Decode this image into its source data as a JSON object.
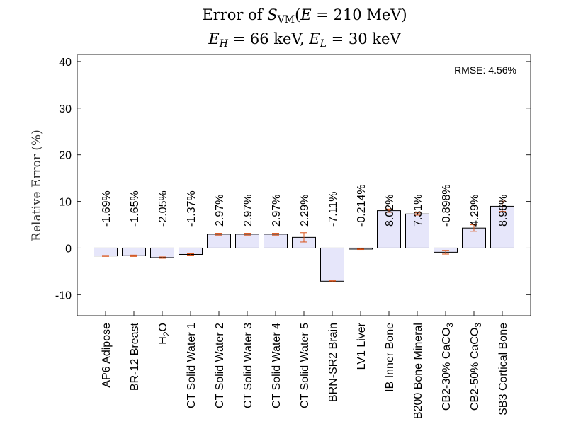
{
  "chart_data": {
    "type": "bar",
    "title_line1": "Error of S_VM(E = 210 MeV)",
    "title_line2": "E_H = 66 keV,  E_L = 30 keV",
    "ylabel": "Relative Error (%)",
    "xlabel": "",
    "ylim": [
      -14.5,
      41.5
    ],
    "yticks": [
      -10,
      0,
      10,
      20,
      30,
      40
    ],
    "annotation": "RMSE: 4.56%",
    "categories": [
      "AP6 Adipose",
      "BR-12 Breast",
      "H2O",
      "CT Solid Water 1",
      "CT Solid Water 2",
      "CT Solid Water 3",
      "CT Solid Water 4",
      "CT Solid Water 5",
      "BRN-SR2 Brain",
      "LV1 Liver",
      "IB Inner Bone",
      "B200 Bone Mineral",
      "CB2-30% CaCO3",
      "CB2-50% CaCO3",
      "SB3 Cortical Bone"
    ],
    "values": [
      -1.69,
      -1.65,
      -2.05,
      -1.37,
      2.97,
      2.97,
      2.97,
      2.29,
      -7.11,
      -0.214,
      8.02,
      7.31,
      -0.898,
      4.29,
      8.96
    ],
    "errors": [
      0.1,
      0.15,
      0.15,
      0.15,
      0.2,
      0.2,
      0.2,
      1.0,
      0.1,
      0.1,
      0.35,
      0.25,
      0.4,
      0.7,
      1.1
    ],
    "data_labels": [
      "-1.69%",
      "-1.65%",
      "-2.05%",
      "-1.37%",
      "2.97%",
      "2.97%",
      "2.97%",
      "2.29%",
      "-7.11%",
      "-0.214%",
      "8.02%",
      "7.31%",
      "-0.898%",
      "4.29%",
      "8.96%"
    ],
    "colors": {
      "bar_fill": "#e6e6fa",
      "bar_edge": "#000000",
      "error_bar": "#d95319",
      "axis": "#262626"
    }
  }
}
